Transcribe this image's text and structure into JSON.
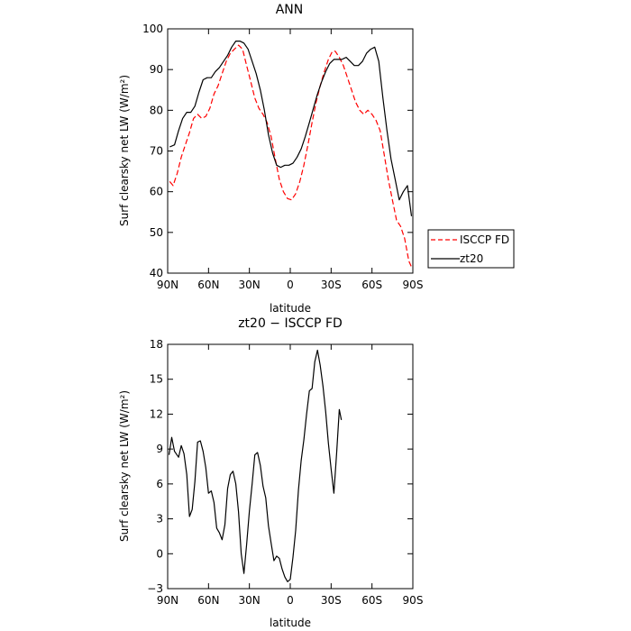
{
  "chart_data": [
    {
      "type": "line",
      "title": "ANN",
      "xlabel": "latitude",
      "ylabel": "Surf clearsky net LW (W/m²)",
      "xlim": [
        90,
        -90
      ],
      "ylim": [
        40,
        100
      ],
      "xticks": [
        {
          "value": 90,
          "label": "90N"
        },
        {
          "value": 60,
          "label": "60N"
        },
        {
          "value": 30,
          "label": "30N"
        },
        {
          "value": 0,
          "label": "0"
        },
        {
          "value": -30,
          "label": "30S"
        },
        {
          "value": -60,
          "label": "60S"
        },
        {
          "value": -90,
          "label": "90S"
        }
      ],
      "yticks": [
        40,
        50,
        60,
        70,
        80,
        90,
        100
      ],
      "legend": "right",
      "series": [
        {
          "name": "ISCCP FD",
          "color": "#ff0000",
          "dash": "dashed",
          "points": [
            [
              88.5,
              62.5
            ],
            [
              86,
              61.5
            ],
            [
              83,
              64.5
            ],
            [
              80,
              68.5
            ],
            [
              77,
              71.5
            ],
            [
              74,
              74.5
            ],
            [
              71,
              78
            ],
            [
              68,
              79
            ],
            [
              65,
              78
            ],
            [
              62,
              78.5
            ],
            [
              59,
              80.5
            ],
            [
              56,
              84
            ],
            [
              53,
              86
            ],
            [
              50,
              89
            ],
            [
              47,
              92
            ],
            [
              44,
              94
            ],
            [
              41,
              95
            ],
            [
              38,
              96
            ],
            [
              35,
              95
            ],
            [
              32,
              91
            ],
            [
              29,
              87
            ],
            [
              26,
              83
            ],
            [
              23,
              80.5
            ],
            [
              20,
              79
            ],
            [
              17,
              77
            ],
            [
              14,
              73.5
            ],
            [
              11,
              68
            ],
            [
              8,
              63
            ],
            [
              5,
              60
            ],
            [
              2,
              58.3
            ],
            [
              -1,
              58
            ],
            [
              -4,
              59.5
            ],
            [
              -7,
              62.5
            ],
            [
              -10,
              66.5
            ],
            [
              -13,
              71.5
            ],
            [
              -16,
              77
            ],
            [
              -19,
              82
            ],
            [
              -22,
              86
            ],
            [
              -25,
              89.5
            ],
            [
              -28,
              92.5
            ],
            [
              -31,
              94.5
            ],
            [
              -33,
              94.5
            ],
            [
              -36,
              93
            ],
            [
              -39,
              91
            ],
            [
              -42,
              88
            ],
            [
              -45,
              85
            ],
            [
              -48,
              82
            ],
            [
              -51,
              80
            ],
            [
              -54,
              79
            ],
            [
              -57,
              80
            ],
            [
              -60,
              79
            ],
            [
              -63,
              77.5
            ],
            [
              -66,
              75
            ],
            [
              -69,
              69
            ],
            [
              -72,
              63
            ],
            [
              -75,
              58
            ],
            [
              -78,
              53
            ],
            [
              -81,
              51.5
            ],
            [
              -84,
              48.5
            ],
            [
              -87,
              43
            ],
            [
              -89,
              41.5
            ]
          ]
        },
        {
          "name": "zt20",
          "color": "#000000",
          "dash": "solid",
          "points": [
            [
              88.5,
              71
            ],
            [
              85,
              71.5
            ],
            [
              82,
              75
            ],
            [
              79,
              78
            ],
            [
              76,
              79.5
            ],
            [
              73,
              79.5
            ],
            [
              70,
              81
            ],
            [
              67,
              84.5
            ],
            [
              64,
              87.5
            ],
            [
              61,
              88
            ],
            [
              58,
              88
            ],
            [
              55,
              89.5
            ],
            [
              52,
              90.5
            ],
            [
              49,
              92
            ],
            [
              46,
              93.5
            ],
            [
              43,
              95.5
            ],
            [
              40,
              97
            ],
            [
              37,
              97
            ],
            [
              34,
              96.5
            ],
            [
              31,
              95
            ],
            [
              28,
              92
            ],
            [
              25,
              89
            ],
            [
              22,
              85
            ],
            [
              19,
              80
            ],
            [
              16,
              74
            ],
            [
              13,
              69.5
            ],
            [
              10,
              66.5
            ],
            [
              7,
              66
            ],
            [
              4,
              66.5
            ],
            [
              1,
              66.5
            ],
            [
              -2,
              67
            ],
            [
              -5,
              68.5
            ],
            [
              -8,
              70.5
            ],
            [
              -11,
              73.5
            ],
            [
              -14,
              77
            ],
            [
              -17,
              80.5
            ],
            [
              -20,
              84
            ],
            [
              -23,
              87
            ],
            [
              -26,
              89.5
            ],
            [
              -29,
              91.5
            ],
            [
              -32,
              92.5
            ],
            [
              -35,
              92.5
            ],
            [
              -38,
              92.5
            ],
            [
              -41,
              93
            ],
            [
              -44,
              92
            ],
            [
              -47,
              91
            ],
            [
              -50,
              91
            ],
            [
              -53,
              92
            ],
            [
              -56,
              94
            ],
            [
              -59,
              95
            ],
            [
              -62,
              95.5
            ],
            [
              -65,
              92
            ],
            [
              -68,
              83
            ],
            [
              -71,
              75
            ],
            [
              -74,
              68
            ],
            [
              -77,
              63
            ],
            [
              -80,
              58
            ],
            [
              -83,
              60
            ],
            [
              -86,
              61.5
            ],
            [
              -89,
              54
            ]
          ]
        }
      ]
    },
    {
      "type": "line",
      "title": "zt20 − ISCCP FD",
      "xlabel": "latitude",
      "ylabel": "Surf clearsky net LW (W/m²)",
      "xlim": [
        90,
        -90
      ],
      "ylim": [
        -3,
        18
      ],
      "xticks": [
        {
          "value": 90,
          "label": "90N"
        },
        {
          "value": 60,
          "label": "60N"
        },
        {
          "value": 30,
          "label": "30N"
        },
        {
          "value": 0,
          "label": "0"
        },
        {
          "value": -30,
          "label": "30S"
        },
        {
          "value": -60,
          "label": "60S"
        },
        {
          "value": -90,
          "label": "90S"
        }
      ],
      "yticks": [
        -3,
        0,
        3,
        6,
        9,
        12,
        15,
        18
      ],
      "series": [
        {
          "name": "",
          "color": "#000000",
          "dash": "solid",
          "points": [
            [
              89,
              8.5
            ],
            [
              87,
              10
            ],
            [
              85,
              8.8
            ],
            [
              82,
              8.3
            ],
            [
              80,
              9.3
            ],
            [
              78,
              8.6
            ],
            [
              76,
              6.8
            ],
            [
              74,
              3.2
            ],
            [
              72,
              3.8
            ],
            [
              70,
              6.2
            ],
            [
              68,
              9.6
            ],
            [
              66,
              9.7
            ],
            [
              64,
              8.8
            ],
            [
              62,
              7.4
            ],
            [
              60,
              5.2
            ],
            [
              58,
              5.4
            ],
            [
              56,
              4.4
            ],
            [
              54,
              2.2
            ],
            [
              52,
              1.8
            ],
            [
              50,
              1.2
            ],
            [
              48,
              2.5
            ],
            [
              46,
              5.6
            ],
            [
              44,
              6.8
            ],
            [
              42,
              7.1
            ],
            [
              40,
              6.0
            ],
            [
              38,
              3.6
            ],
            [
              36,
              0
            ],
            [
              34,
              -1.7
            ],
            [
              32,
              0.8
            ],
            [
              30,
              3.7
            ],
            [
              28,
              6.0
            ],
            [
              26,
              8.5
            ],
            [
              24,
              8.7
            ],
            [
              22,
              7.6
            ],
            [
              20,
              5.8
            ],
            [
              18,
              4.8
            ],
            [
              16,
              2.4
            ],
            [
              14,
              0.9
            ],
            [
              12,
              -0.6
            ],
            [
              10,
              -0.2
            ],
            [
              8,
              -0.4
            ],
            [
              6,
              -1.3
            ],
            [
              4,
              -2.0
            ],
            [
              2,
              -2.4
            ],
            [
              0,
              -2.2
            ],
            [
              -2,
              -0.3
            ],
            [
              -4,
              2.0
            ],
            [
              -6,
              5.5
            ],
            [
              -8,
              8.0
            ],
            [
              -10,
              9.8
            ],
            [
              -12,
              12.0
            ],
            [
              -14,
              14.0
            ],
            [
              -16,
              14.2
            ],
            [
              -18,
              16.5
            ],
            [
              -20,
              17.5
            ],
            [
              -22,
              16.2
            ],
            [
              -24,
              14.4
            ],
            [
              -26,
              12.2
            ],
            [
              -28,
              9.5
            ],
            [
              -30,
              7.3
            ],
            [
              -32,
              5.2
            ],
            [
              -34,
              8.6
            ],
            [
              -36,
              12.4
            ],
            [
              -37.5,
              11.5
            ]
          ]
        }
      ]
    }
  ]
}
